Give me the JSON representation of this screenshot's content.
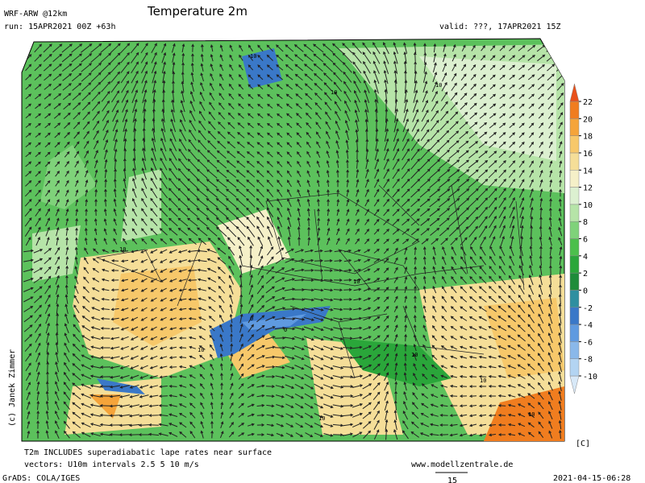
{
  "header": {
    "model": "WRF-ARW @12km",
    "run": "run: 15APR2021 00Z +63h",
    "title": "Temperature 2m",
    "valid": "valid: ???, 17APR2021 15Z"
  },
  "colorbar": {
    "levels": [
      -10,
      -8,
      -6,
      -4,
      -2,
      0,
      2,
      4,
      6,
      8,
      10,
      12,
      14,
      16,
      18,
      20,
      22
    ],
    "colors": [
      "#d8e9f8",
      "#b3d4f2",
      "#8ab8ea",
      "#5f9ae0",
      "#3a78c8",
      "#2f8fa0",
      "#1f8c3a",
      "#2aa63a",
      "#4cbf4c",
      "#7fd27a",
      "#b6e4a8",
      "#dcf0d0",
      "#f5f0c8",
      "#f5de98",
      "#f7c86a",
      "#f5a43a",
      "#f07d1f",
      "#e8501a"
    ],
    "unit": "[C]"
  },
  "map": {
    "contour_labels": [
      10,
      10,
      10,
      10,
      10,
      10,
      10,
      10,
      10,
      10,
      0,
      0
    ]
  },
  "footer": {
    "note": "T2m INCLUDES superadiabatic lape rates near surface",
    "vectors": "vectors: U10m intervals 2.5 5 10 m/s",
    "site": "www.modellzentrale.de",
    "copyright": "(c) Janek Zimmer",
    "software": "GrADS: COLA/IGES",
    "timestamp": "2021-04-15-06:28",
    "vector_scale": "15"
  }
}
